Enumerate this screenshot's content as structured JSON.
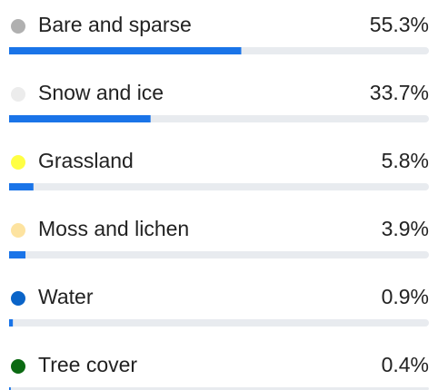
{
  "chart_data": {
    "type": "bar",
    "orientation": "horizontal",
    "xlim": [
      0,
      100
    ],
    "categories": [
      "Bare and sparse",
      "Snow and ice",
      "Grassland",
      "Moss and lichen",
      "Water",
      "Tree cover"
    ],
    "values": [
      55.3,
      33.7,
      5.8,
      3.9,
      0.9,
      0.4
    ],
    "value_labels": [
      "55.3%",
      "33.7%",
      "5.8%",
      "3.9%",
      "0.9%",
      "0.4%"
    ],
    "dot_colors": [
      "#b0b0b0",
      "#ececec",
      "#ffff44",
      "#fde3a0",
      "#0a64c8",
      "#0b6a12"
    ],
    "color": "#1a74e8",
    "track_color": "#e8ebef"
  }
}
